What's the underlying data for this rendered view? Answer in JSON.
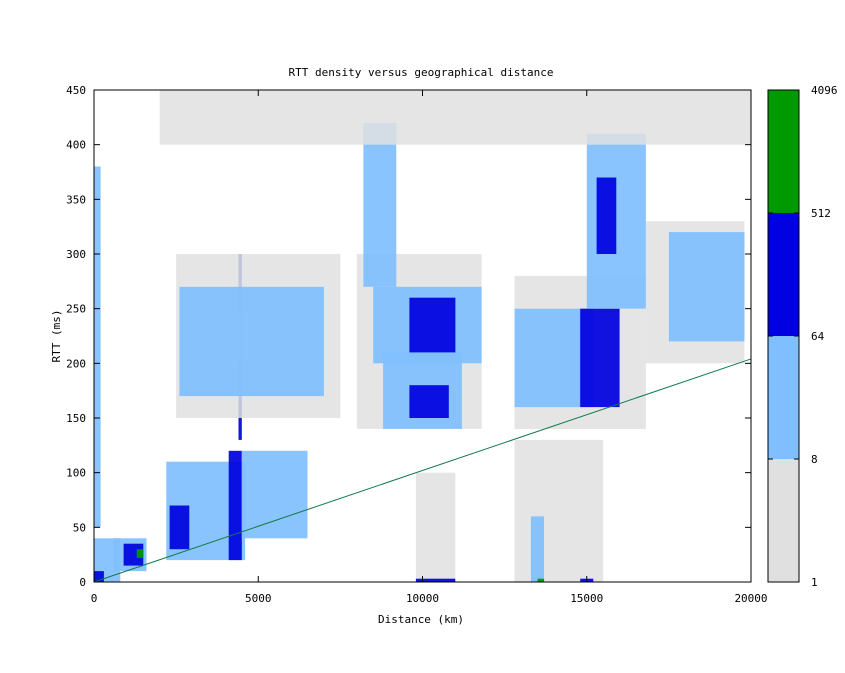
{
  "chart_data": {
    "type": "heatmap",
    "title": "RTT density versus geographical distance",
    "xlabel": "Distance (km)",
    "ylabel": "RTT (ms)",
    "xlim": [
      0,
      20000
    ],
    "ylim": [
      0,
      450
    ],
    "xticks": [
      {
        "value": 0,
        "label": "0"
      },
      {
        "value": 5000,
        "label": "5000"
      },
      {
        "value": 10000,
        "label": "10000"
      },
      {
        "value": 15000,
        "label": "15000"
      },
      {
        "value": 20000,
        "label": "20000"
      }
    ],
    "yticks": [
      {
        "value": 0,
        "label": "0"
      },
      {
        "value": 50,
        "label": "50"
      },
      {
        "value": 100,
        "label": "100"
      },
      {
        "value": 150,
        "label": "150"
      },
      {
        "value": 200,
        "label": "200"
      },
      {
        "value": 250,
        "label": "250"
      },
      {
        "value": 300,
        "label": "300"
      },
      {
        "value": 350,
        "label": "350"
      },
      {
        "value": 400,
        "label": "400"
      },
      {
        "value": 450,
        "label": "450"
      }
    ],
    "grid": false,
    "colorscale": {
      "scale": "log",
      "boundaries": [
        {
          "value": 1,
          "label": "1"
        },
        {
          "value": 8,
          "label": "8"
        },
        {
          "value": 64,
          "label": "64"
        },
        {
          "value": 512,
          "label": "512"
        },
        {
          "value": 4096,
          "label": "4096"
        }
      ],
      "bands": [
        {
          "from": 1,
          "to": 8,
          "color": "#e0e0e0"
        },
        {
          "from": 8,
          "to": 64,
          "color": "#80bfff"
        },
        {
          "from": 64,
          "to": 512,
          "color": "#0000e0"
        },
        {
          "from": 512,
          "to": 4096,
          "color": "#009900"
        }
      ]
    },
    "reference_line": {
      "color": "#0f7a4a",
      "points": [
        [
          0,
          0
        ],
        [
          20000,
          204
        ]
      ]
    },
    "density_regions": [
      {
        "x": [
          0,
          800
        ],
        "y": [
          0,
          40
        ],
        "level": 2
      },
      {
        "x": [
          0,
          300
        ],
        "y": [
          0,
          10
        ],
        "level": 3
      },
      {
        "x": [
          600,
          1600
        ],
        "y": [
          10,
          40
        ],
        "level": 2
      },
      {
        "x": [
          900,
          1500
        ],
        "y": [
          15,
          35
        ],
        "level": 3
      },
      {
        "x": [
          1300,
          1500
        ],
        "y": [
          22,
          30
        ],
        "level": 4
      },
      {
        "x": [
          2200,
          4600
        ],
        "y": [
          20,
          110
        ],
        "level": 2
      },
      {
        "x": [
          2300,
          2900
        ],
        "y": [
          30,
          70
        ],
        "level": 3
      },
      {
        "x": [
          4100,
          4500
        ],
        "y": [
          20,
          120
        ],
        "level": 3
      },
      {
        "x": [
          4400,
          4500
        ],
        "y": [
          130,
          300
        ],
        "level": 3
      },
      {
        "x": [
          4400,
          4500
        ],
        "y": [
          200,
          245
        ],
        "level": 4
      },
      {
        "x": [
          4500,
          6500
        ],
        "y": [
          40,
          120
        ],
        "level": 2
      },
      {
        "x": [
          2500,
          7500
        ],
        "y": [
          150,
          300
        ],
        "level": 1
      },
      {
        "x": [
          2600,
          7000
        ],
        "y": [
          170,
          270
        ],
        "level": 2
      },
      {
        "x": [
          0,
          200
        ],
        "y": [
          50,
          380
        ],
        "level": 2
      },
      {
        "x": [
          8000,
          11800
        ],
        "y": [
          140,
          300
        ],
        "level": 1
      },
      {
        "x": [
          8500,
          11800
        ],
        "y": [
          200,
          270
        ],
        "level": 2
      },
      {
        "x": [
          8800,
          11200
        ],
        "y": [
          140,
          210
        ],
        "level": 2
      },
      {
        "x": [
          9600,
          11000
        ],
        "y": [
          210,
          260
        ],
        "level": 3
      },
      {
        "x": [
          9600,
          10800
        ],
        "y": [
          150,
          180
        ],
        "level": 3
      },
      {
        "x": [
          8200,
          9200
        ],
        "y": [
          270,
          420
        ],
        "level": 2
      },
      {
        "x": [
          12800,
          16800
        ],
        "y": [
          140,
          280
        ],
        "level": 1
      },
      {
        "x": [
          12800,
          15200
        ],
        "y": [
          160,
          250
        ],
        "level": 2
      },
      {
        "x": [
          14800,
          16000
        ],
        "y": [
          160,
          250
        ],
        "level": 3
      },
      {
        "x": [
          15000,
          16800
        ],
        "y": [
          250,
          410
        ],
        "level": 2
      },
      {
        "x": [
          15300,
          15900
        ],
        "y": [
          300,
          370
        ],
        "level": 3
      },
      {
        "x": [
          16800,
          19800
        ],
        "y": [
          200,
          330
        ],
        "level": 1
      },
      {
        "x": [
          17500,
          19800
        ],
        "y": [
          220,
          320
        ],
        "level": 2
      },
      {
        "x": [
          12800,
          15500
        ],
        "y": [
          0,
          130
        ],
        "level": 1
      },
      {
        "x": [
          13300,
          13700
        ],
        "y": [
          0,
          60
        ],
        "level": 2
      },
      {
        "x": [
          13500,
          13700
        ],
        "y": [
          0,
          3
        ],
        "level": 4
      },
      {
        "x": [
          14800,
          15200
        ],
        "y": [
          0,
          3
        ],
        "level": 3
      },
      {
        "x": [
          9800,
          11000
        ],
        "y": [
          0,
          100
        ],
        "level": 1
      },
      {
        "x": [
          9800,
          11000
        ],
        "y": [
          0,
          3
        ],
        "level": 3
      },
      {
        "x": [
          2000,
          20000
        ],
        "y": [
          400,
          450
        ],
        "level": 1
      }
    ]
  }
}
